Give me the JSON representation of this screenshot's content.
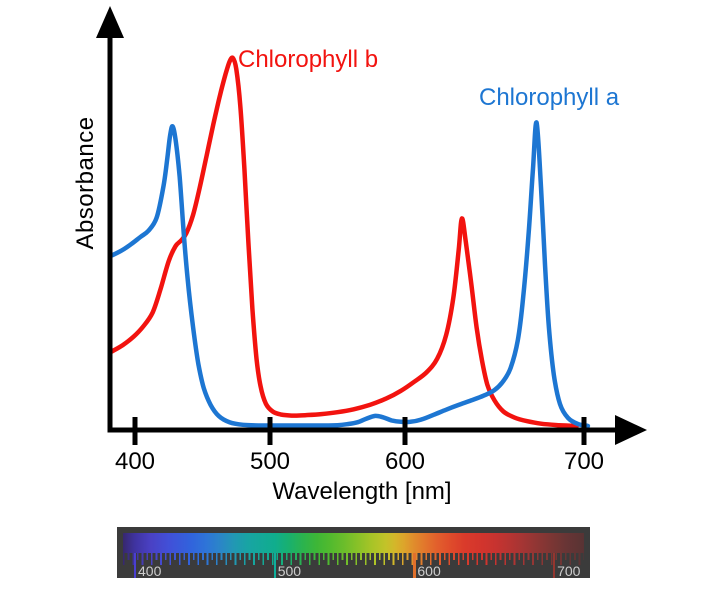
{
  "labels": {
    "ylabel": "Absorbance",
    "xlabel": "Wavelength [nm]",
    "chl_b": "Chlorophyll b",
    "chl_a": "Chlorophyll a"
  },
  "colors": {
    "chl_a_blue": "#1d76d2",
    "chl_b_red": "#f2130f",
    "axis_black": "#000000"
  },
  "chart_data": {
    "type": "line",
    "title": "",
    "xlabel": "Wavelength [nm]",
    "ylabel": "Absorbance",
    "x_ticks": [
      400,
      500,
      600,
      700
    ],
    "x_tick_labels": [
      "400",
      "500",
      "600",
      "700"
    ],
    "xlim": [
      383,
      705
    ],
    "ylim": [
      0,
      1.05
    ],
    "grid": false,
    "legend_position": "inline-annotations",
    "annotations": [
      {
        "text": "Chlorophyll b",
        "color": "#f2130f",
        "near": "blue-violet absorption peak of chlorophyll b"
      },
      {
        "text": "Chlorophyll a",
        "color": "#1d76d2",
        "near": "red absorption peak of chlorophyll a"
      }
    ],
    "series": [
      {
        "name": "Chlorophyll b",
        "color": "#f2130f",
        "points": [
          [
            383,
            0.205
          ],
          [
            391,
            0.222
          ],
          [
            399,
            0.245
          ],
          [
            406,
            0.272
          ],
          [
            413,
            0.31
          ],
          [
            419,
            0.375
          ],
          [
            425,
            0.45
          ],
          [
            430,
            0.49
          ],
          [
            434,
            0.505
          ],
          [
            438,
            0.525
          ],
          [
            443,
            0.575
          ],
          [
            448,
            0.65
          ],
          [
            453,
            0.735
          ],
          [
            458,
            0.82
          ],
          [
            463,
            0.9
          ],
          [
            467,
            0.955
          ],
          [
            470,
            0.99
          ],
          [
            472.5,
            1.0
          ],
          [
            475,
            0.97
          ],
          [
            478,
            0.87
          ],
          [
            481,
            0.7
          ],
          [
            484,
            0.5
          ],
          [
            487,
            0.32
          ],
          [
            490,
            0.185
          ],
          [
            493,
            0.11
          ],
          [
            497,
            0.063
          ],
          [
            502,
            0.042
          ],
          [
            508,
            0.034
          ],
          [
            516,
            0.031
          ],
          [
            526,
            0.032
          ],
          [
            538,
            0.035
          ],
          [
            550,
            0.04
          ],
          [
            562,
            0.048
          ],
          [
            574,
            0.06
          ],
          [
            586,
            0.077
          ],
          [
            597,
            0.098
          ],
          [
            605,
            0.122
          ],
          [
            612,
            0.148
          ],
          [
            618,
            0.185
          ],
          [
            623,
            0.25
          ],
          [
            627,
            0.35
          ],
          [
            630,
            0.48
          ],
          [
            631.8,
            0.565
          ],
          [
            634,
            0.5
          ],
          [
            637,
            0.39
          ],
          [
            640,
            0.27
          ],
          [
            643,
            0.18
          ],
          [
            646,
            0.115
          ],
          [
            650,
            0.072
          ],
          [
            655,
            0.042
          ],
          [
            661,
            0.026
          ],
          [
            668,
            0.016
          ],
          [
            676,
            0.009
          ],
          [
            686,
            0.005
          ],
          [
            696,
            0.003
          ]
        ]
      },
      {
        "name": "Chlorophyll a",
        "color": "#1d76d2",
        "points": [
          [
            383,
            0.465
          ],
          [
            390,
            0.478
          ],
          [
            397,
            0.495
          ],
          [
            404,
            0.515
          ],
          [
            410,
            0.532
          ],
          [
            416,
            0.567
          ],
          [
            421,
            0.65
          ],
          [
            424,
            0.73
          ],
          [
            426,
            0.79
          ],
          [
            427.8,
            0.815
          ],
          [
            430,
            0.78
          ],
          [
            433,
            0.68
          ],
          [
            436,
            0.53
          ],
          [
            439,
            0.4
          ],
          [
            443,
            0.27
          ],
          [
            447,
            0.17
          ],
          [
            451,
            0.105
          ],
          [
            456,
            0.06
          ],
          [
            462,
            0.03
          ],
          [
            470,
            0.013
          ],
          [
            480,
            0.006
          ],
          [
            495,
            0.004
          ],
          [
            515,
            0.004
          ],
          [
            535,
            0.004
          ],
          [
            550,
            0.005
          ],
          [
            558,
            0.008
          ],
          [
            565,
            0.013
          ],
          [
            571,
            0.022
          ],
          [
            578,
            0.03
          ],
          [
            584,
            0.026
          ],
          [
            590,
            0.018
          ],
          [
            597,
            0.014
          ],
          [
            603,
            0.014
          ],
          [
            609,
            0.02
          ],
          [
            616,
            0.033
          ],
          [
            623,
            0.047
          ],
          [
            630,
            0.06
          ],
          [
            637,
            0.072
          ],
          [
            644,
            0.085
          ],
          [
            650,
            0.1
          ],
          [
            655,
            0.125
          ],
          [
            659,
            0.16
          ],
          [
            663,
            0.235
          ],
          [
            666,
            0.35
          ],
          [
            669,
            0.52
          ],
          [
            671.5,
            0.7
          ],
          [
            673.5,
            0.825
          ],
          [
            676,
            0.65
          ],
          [
            678.2,
            0.44
          ],
          [
            680.4,
            0.27
          ],
          [
            683.2,
            0.14
          ],
          [
            686.6,
            0.062
          ],
          [
            691,
            0.025
          ],
          [
            696.6,
            0.008
          ],
          [
            702.2,
            0.003
          ]
        ]
      }
    ]
  },
  "spectrum_bar": {
    "background": "#3b3b3b",
    "label_color": "#cdcdcd",
    "tick_labels": [
      {
        "nm": 400,
        "label": "400",
        "tick_color": "#4a3fd0"
      },
      {
        "nm": 500,
        "label": "500",
        "tick_color": "#0fae9b"
      },
      {
        "nm": 600,
        "label": "600",
        "tick_color": "#e0702c"
      },
      {
        "nm": 700,
        "label": "700",
        "tick_color": "#93362f"
      }
    ],
    "gradient_stops": [
      [
        "0%",
        "#37286e"
      ],
      [
        "2.6%",
        "#3f33a0"
      ],
      [
        "6%",
        "#4a41c4"
      ],
      [
        "10%",
        "#4150d8"
      ],
      [
        "14.7%",
        "#3163dc"
      ],
      [
        "18%",
        "#2e74d8"
      ],
      [
        "21%",
        "#2b85c8"
      ],
      [
        "24%",
        "#2297b4"
      ],
      [
        "27%",
        "#18a4a4"
      ],
      [
        "33%",
        "#10ad8d"
      ],
      [
        "36%",
        "#19b06e"
      ],
      [
        "39%",
        "#2bb34e"
      ],
      [
        "42%",
        "#3db637"
      ],
      [
        "45%",
        "#52ba2e"
      ],
      [
        "48%",
        "#6cbd2b"
      ],
      [
        "51%",
        "#89c128"
      ],
      [
        "54%",
        "#a8c427"
      ],
      [
        "57%",
        "#c2c329"
      ],
      [
        "59%",
        "#d4b62a"
      ],
      [
        "61%",
        "#dda42b"
      ],
      [
        "63%",
        "#e08d2c"
      ],
      [
        "65.5%",
        "#e2762c"
      ],
      [
        "68%",
        "#e2602c"
      ],
      [
        "71%",
        "#df4c2b"
      ],
      [
        "74%",
        "#da3b2b"
      ],
      [
        "78%",
        "#d2342d"
      ],
      [
        "81%",
        "#c63330"
      ],
      [
        "84%",
        "#b53432"
      ],
      [
        "87%",
        "#a23534"
      ],
      [
        "90%",
        "#8e3634"
      ],
      [
        "93%",
        "#7b3634"
      ],
      [
        "96%",
        "#693535"
      ],
      [
        "100%",
        "#583334"
      ]
    ]
  }
}
